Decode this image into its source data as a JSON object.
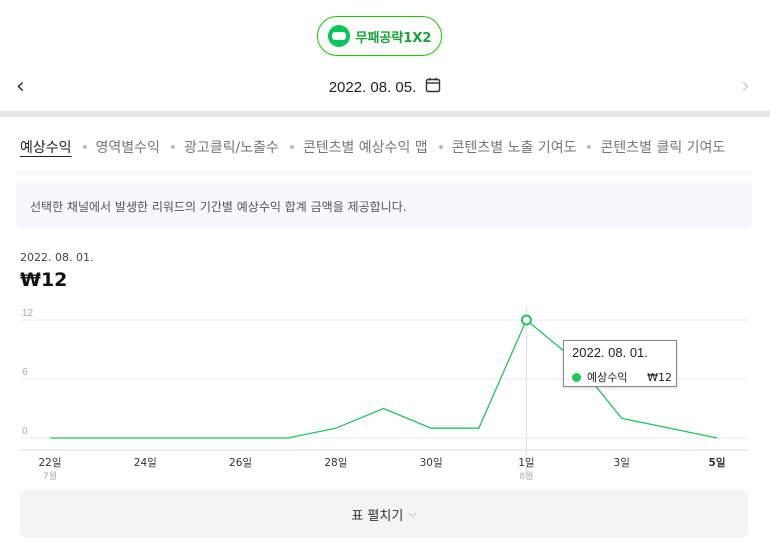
{
  "channel": {
    "name": "무패공략1X2",
    "icon": "naver-blog-icon"
  },
  "date_nav": {
    "date": "2022. 08. 05.",
    "prev": "‹",
    "next": "›"
  },
  "tabs": [
    {
      "label": "예상수익",
      "active": true
    },
    {
      "label": "영역별수익",
      "active": false
    },
    {
      "label": "광고클릭/노출수",
      "active": false
    },
    {
      "label": "콘텐츠별 예상수익 맵",
      "active": false
    },
    {
      "label": "콘텐츠별 노출 기여도",
      "active": false
    },
    {
      "label": "콘텐츠별 클릭 기여도",
      "active": false
    }
  ],
  "info_text": "선택한 채널에서 발생한 리워드의 기간별 예상수익 합계 금액을 제공합니다.",
  "selected": {
    "date": "2022. 08. 01.",
    "value": "₩12"
  },
  "tooltip": {
    "date": "2022. 08. 01.",
    "series": "예상수익",
    "value": "₩12"
  },
  "expand_button": {
    "label": "표 펼치기"
  },
  "colors": {
    "accent": "#22c55e",
    "brand": "#03c75a"
  },
  "chart_data": {
    "type": "line",
    "ylim": [
      0,
      12
    ],
    "y_ticks": [
      "0",
      "6",
      "12"
    ],
    "x_tick_labels": [
      {
        "label": "22일",
        "sub": "7월",
        "bold": false
      },
      {
        "label": "24일",
        "sub": "",
        "bold": false
      },
      {
        "label": "26일",
        "sub": "",
        "bold": false
      },
      {
        "label": "28일",
        "sub": "",
        "bold": false
      },
      {
        "label": "30일",
        "sub": "",
        "bold": false
      },
      {
        "label": "1일",
        "sub": "8월",
        "bold": false
      },
      {
        "label": "3일",
        "sub": "",
        "bold": false
      },
      {
        "label": "5일",
        "sub": "",
        "bold": true
      }
    ],
    "series": [
      {
        "name": "예상수익",
        "x": [
          "07-22",
          "07-23",
          "07-24",
          "07-25",
          "07-26",
          "07-27",
          "07-28",
          "07-29",
          "07-30",
          "07-31",
          "08-01",
          "08-02",
          "08-03",
          "08-04",
          "08-05"
        ],
        "values": [
          0,
          0,
          0,
          0,
          0,
          0,
          1,
          3,
          1,
          1,
          12,
          8,
          2,
          1,
          0
        ]
      }
    ],
    "highlight_index": 10,
    "grid": true
  }
}
